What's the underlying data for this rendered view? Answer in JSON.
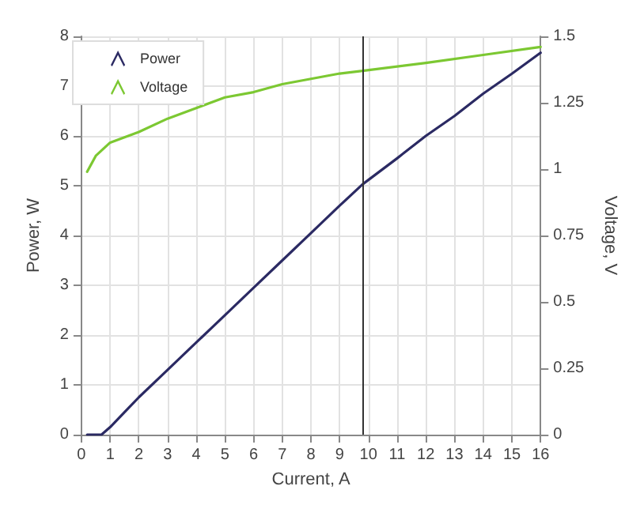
{
  "chart_data": {
    "type": "line",
    "xlabel": "Current, A",
    "ylabel": "Power, W",
    "y2label": "Voltage, V",
    "xlim": [
      0,
      16
    ],
    "xticks": [
      0,
      1,
      2,
      3,
      4,
      5,
      6,
      7,
      8,
      9,
      10,
      11,
      12,
      13,
      14,
      15,
      16
    ],
    "ylim": [
      0,
      8
    ],
    "yticks": [
      0,
      1,
      2,
      3,
      4,
      5,
      6,
      7,
      8
    ],
    "y2lim": [
      0,
      1.5
    ],
    "y2ticks": [
      0,
      0.25,
      0.5,
      0.75,
      1,
      1.25,
      1.5
    ],
    "grid": true,
    "legend": "top left",
    "marker": "none",
    "line_style": "solid",
    "series": [
      {
        "name": "Power",
        "color": "#2b2a63",
        "x": [
          0.2,
          0.7,
          1,
          1.5,
          2,
          3,
          4,
          5,
          6,
          7,
          8,
          9,
          9.8,
          11,
          12,
          13,
          14,
          15,
          16
        ],
        "values": [
          0,
          0,
          0.15,
          0.45,
          0.75,
          1.3,
          1.85,
          2.4,
          2.95,
          3.5,
          4.05,
          4.6,
          5.03,
          5.55,
          6.0,
          6.4,
          6.85,
          7.25,
          7.67
        ]
      },
      {
        "name": "Voltage",
        "color": "#7cc832",
        "axis": "y2",
        "x": [
          0.2,
          0.5,
          1,
          2,
          3,
          4,
          5,
          6,
          7,
          8,
          9,
          9.8,
          12,
          14,
          16
        ],
        "values": [
          0.99,
          1.05,
          1.1,
          1.14,
          1.19,
          1.23,
          1.27,
          1.29,
          1.32,
          1.34,
          1.36,
          1.37,
          1.4,
          1.43,
          1.46
        ]
      }
    ],
    "ref_lines": [
      {
        "axis": "x",
        "value": 9.8,
        "color": "#333333"
      }
    ]
  }
}
